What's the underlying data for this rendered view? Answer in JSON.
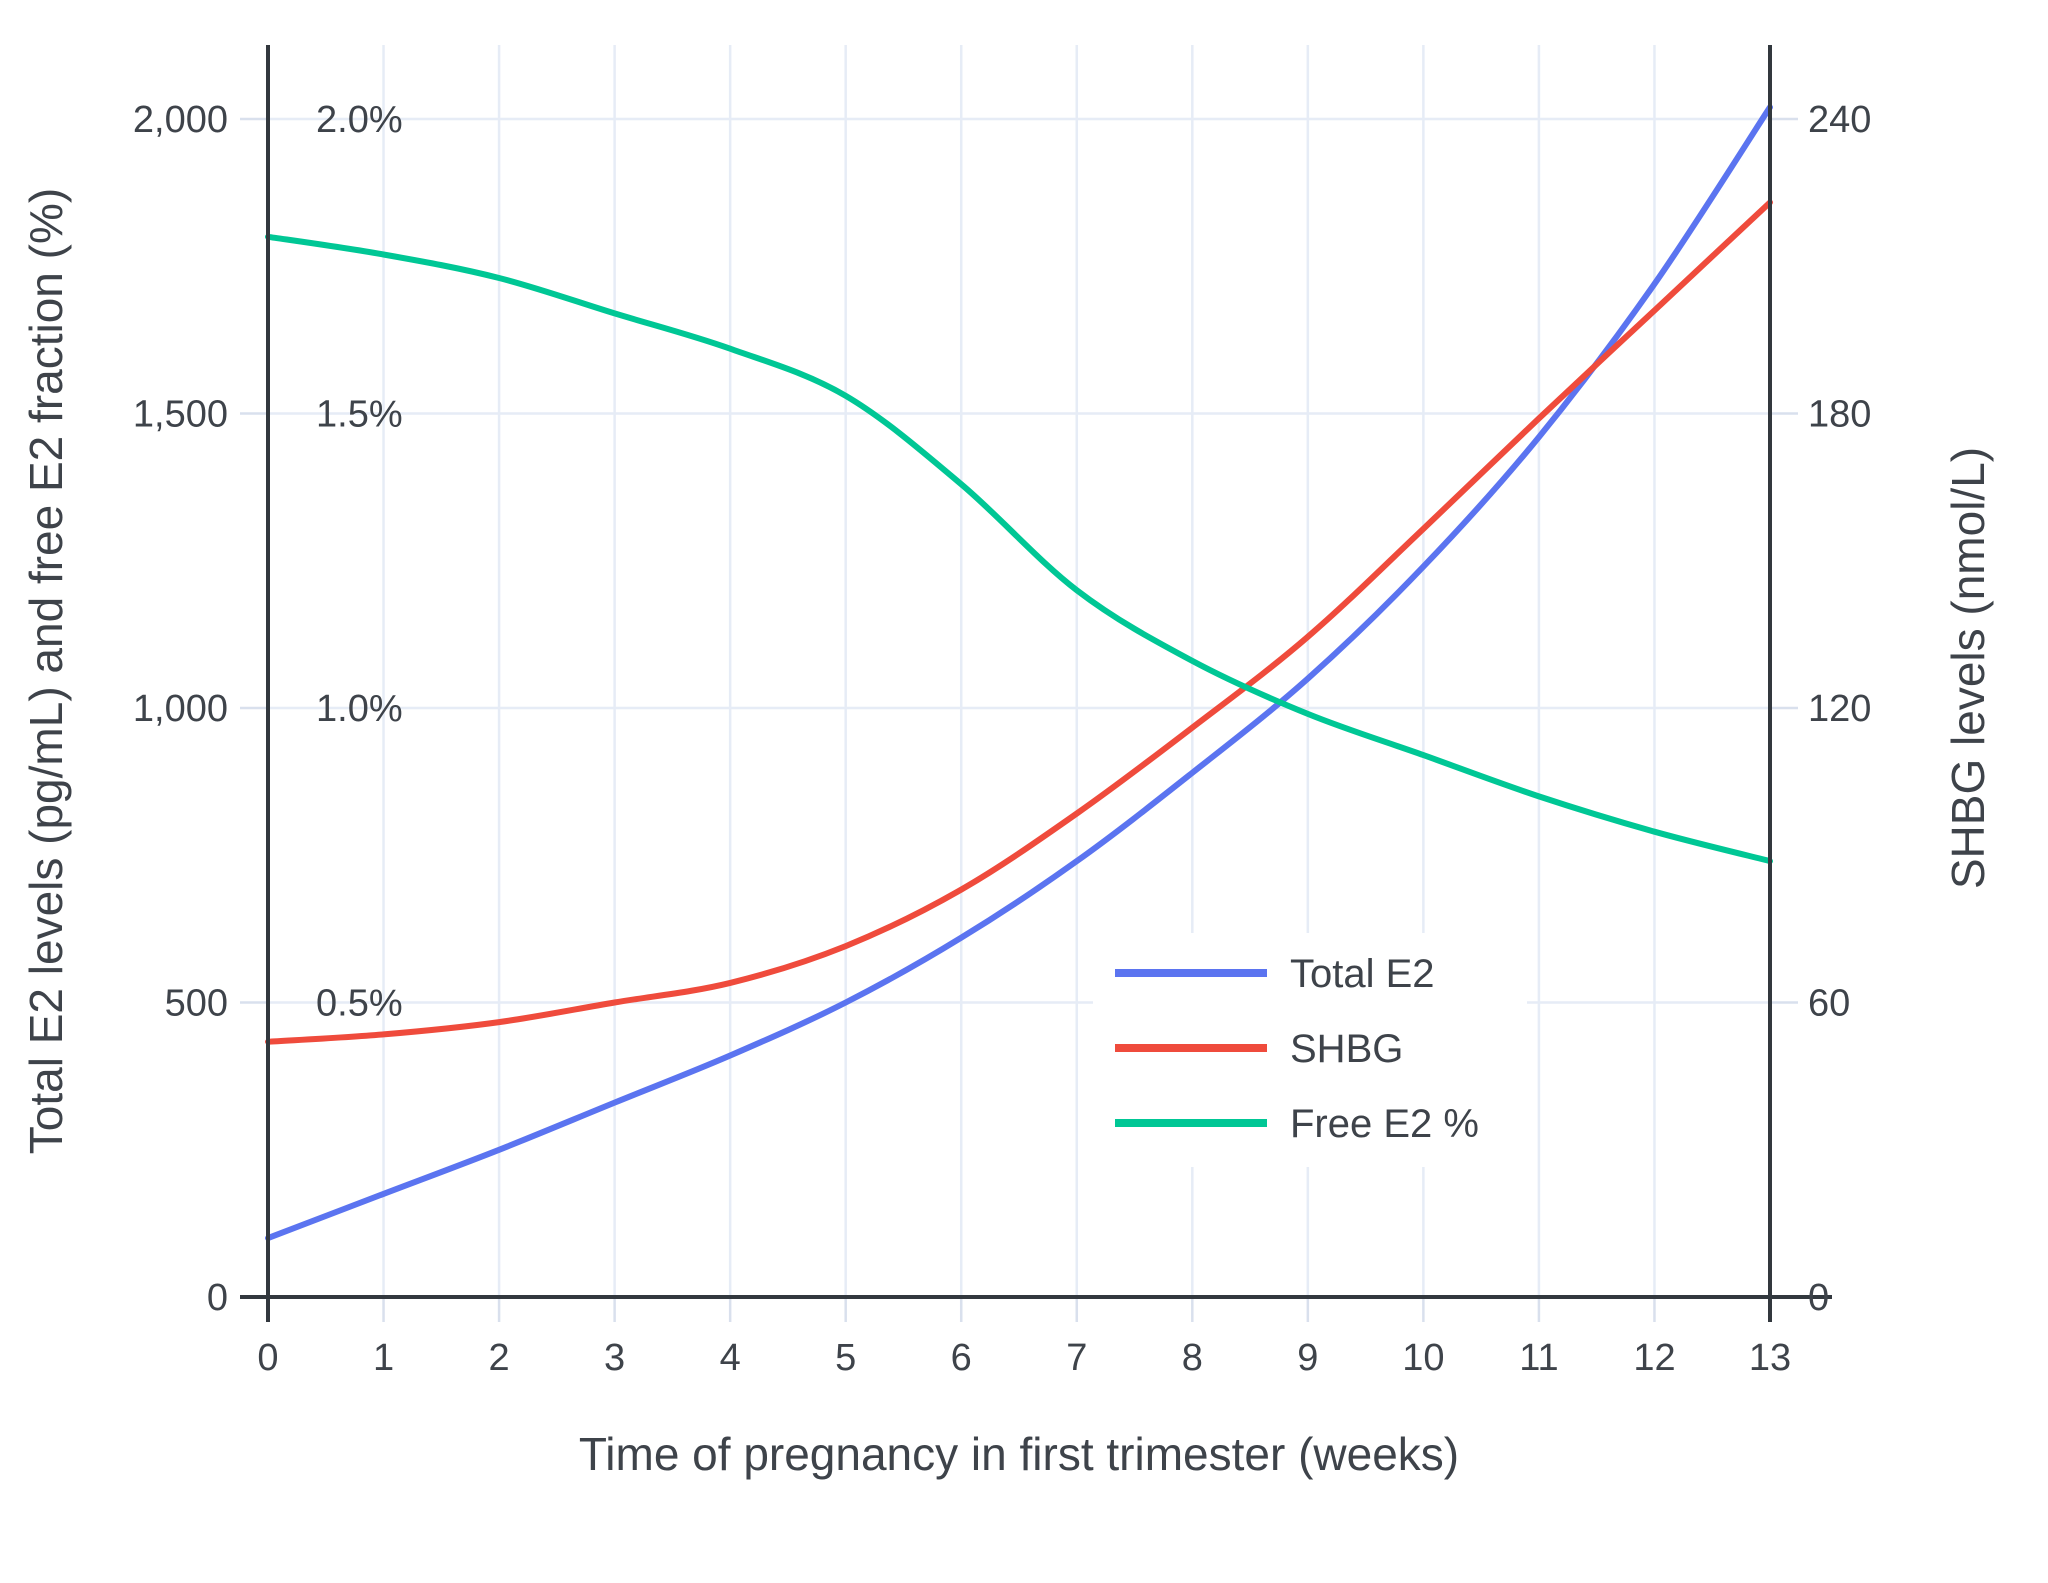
{
  "chart_data": {
    "type": "line",
    "xlabel": "Time of pregnancy in first trimester (weeks)",
    "x": [
      0,
      1,
      2,
      3,
      4,
      5,
      6,
      7,
      8,
      9,
      10,
      11,
      12,
      13
    ],
    "x_tick_labels": [
      "0",
      "1",
      "2",
      "3",
      "4",
      "5",
      "6",
      "7",
      "8",
      "9",
      "10",
      "11",
      "12",
      "13"
    ],
    "left_axis": {
      "label": "Total E2 levels (pg/mL) and free E2 fraction (%)",
      "ticks": [
        0,
        500,
        1000,
        1500,
        2000
      ],
      "tick_labels": [
        "0",
        "500",
        "1,000",
        "1,500",
        "2,000"
      ],
      "percent_ticks": [
        500,
        1000,
        1500,
        2000
      ],
      "percent_tick_labels": [
        "0.5%",
        "1.0%",
        "1.5%",
        "2.0%"
      ],
      "range": [
        0,
        2125
      ]
    },
    "right_axis": {
      "label": "SHBG levels (nmol/L)",
      "ticks": [
        0,
        60,
        120,
        180,
        240
      ],
      "tick_labels": [
        "0",
        "60",
        "120",
        "180",
        "240"
      ],
      "range": [
        0,
        255
      ]
    },
    "series": [
      {
        "name": "Total E2",
        "axis": "left",
        "color": "#5B74F0",
        "values": [
          100,
          175,
          250,
          330,
          410,
          500,
          610,
          740,
          890,
          1050,
          1240,
          1460,
          1720,
          2020
        ]
      },
      {
        "name": "SHBG",
        "axis": "right",
        "color": "#EF4B3C",
        "values": [
          52,
          53.5,
          56,
          60,
          64,
          71.5,
          83,
          98.5,
          116,
          134.5,
          156.5,
          179,
          201,
          223
        ]
      },
      {
        "name": "Free E2 %",
        "axis": "percent",
        "color": "#00C795",
        "values": [
          1.8,
          1.77,
          1.73,
          1.67,
          1.61,
          1.53,
          1.38,
          1.2,
          1.08,
          0.99,
          0.92,
          0.85,
          0.79,
          0.74
        ]
      }
    ],
    "legend": {
      "entries": [
        "Total E2",
        "SHBG",
        "Free E2 %"
      ],
      "position": "center-right",
      "background": "#ffffff"
    },
    "grid": {
      "show": true,
      "color": "#E6ECF6"
    },
    "colors": {
      "axis_line": "#32383E",
      "tick_mark": "#D9E0ED",
      "text": "#3E434A",
      "background": "#ffffff"
    }
  }
}
